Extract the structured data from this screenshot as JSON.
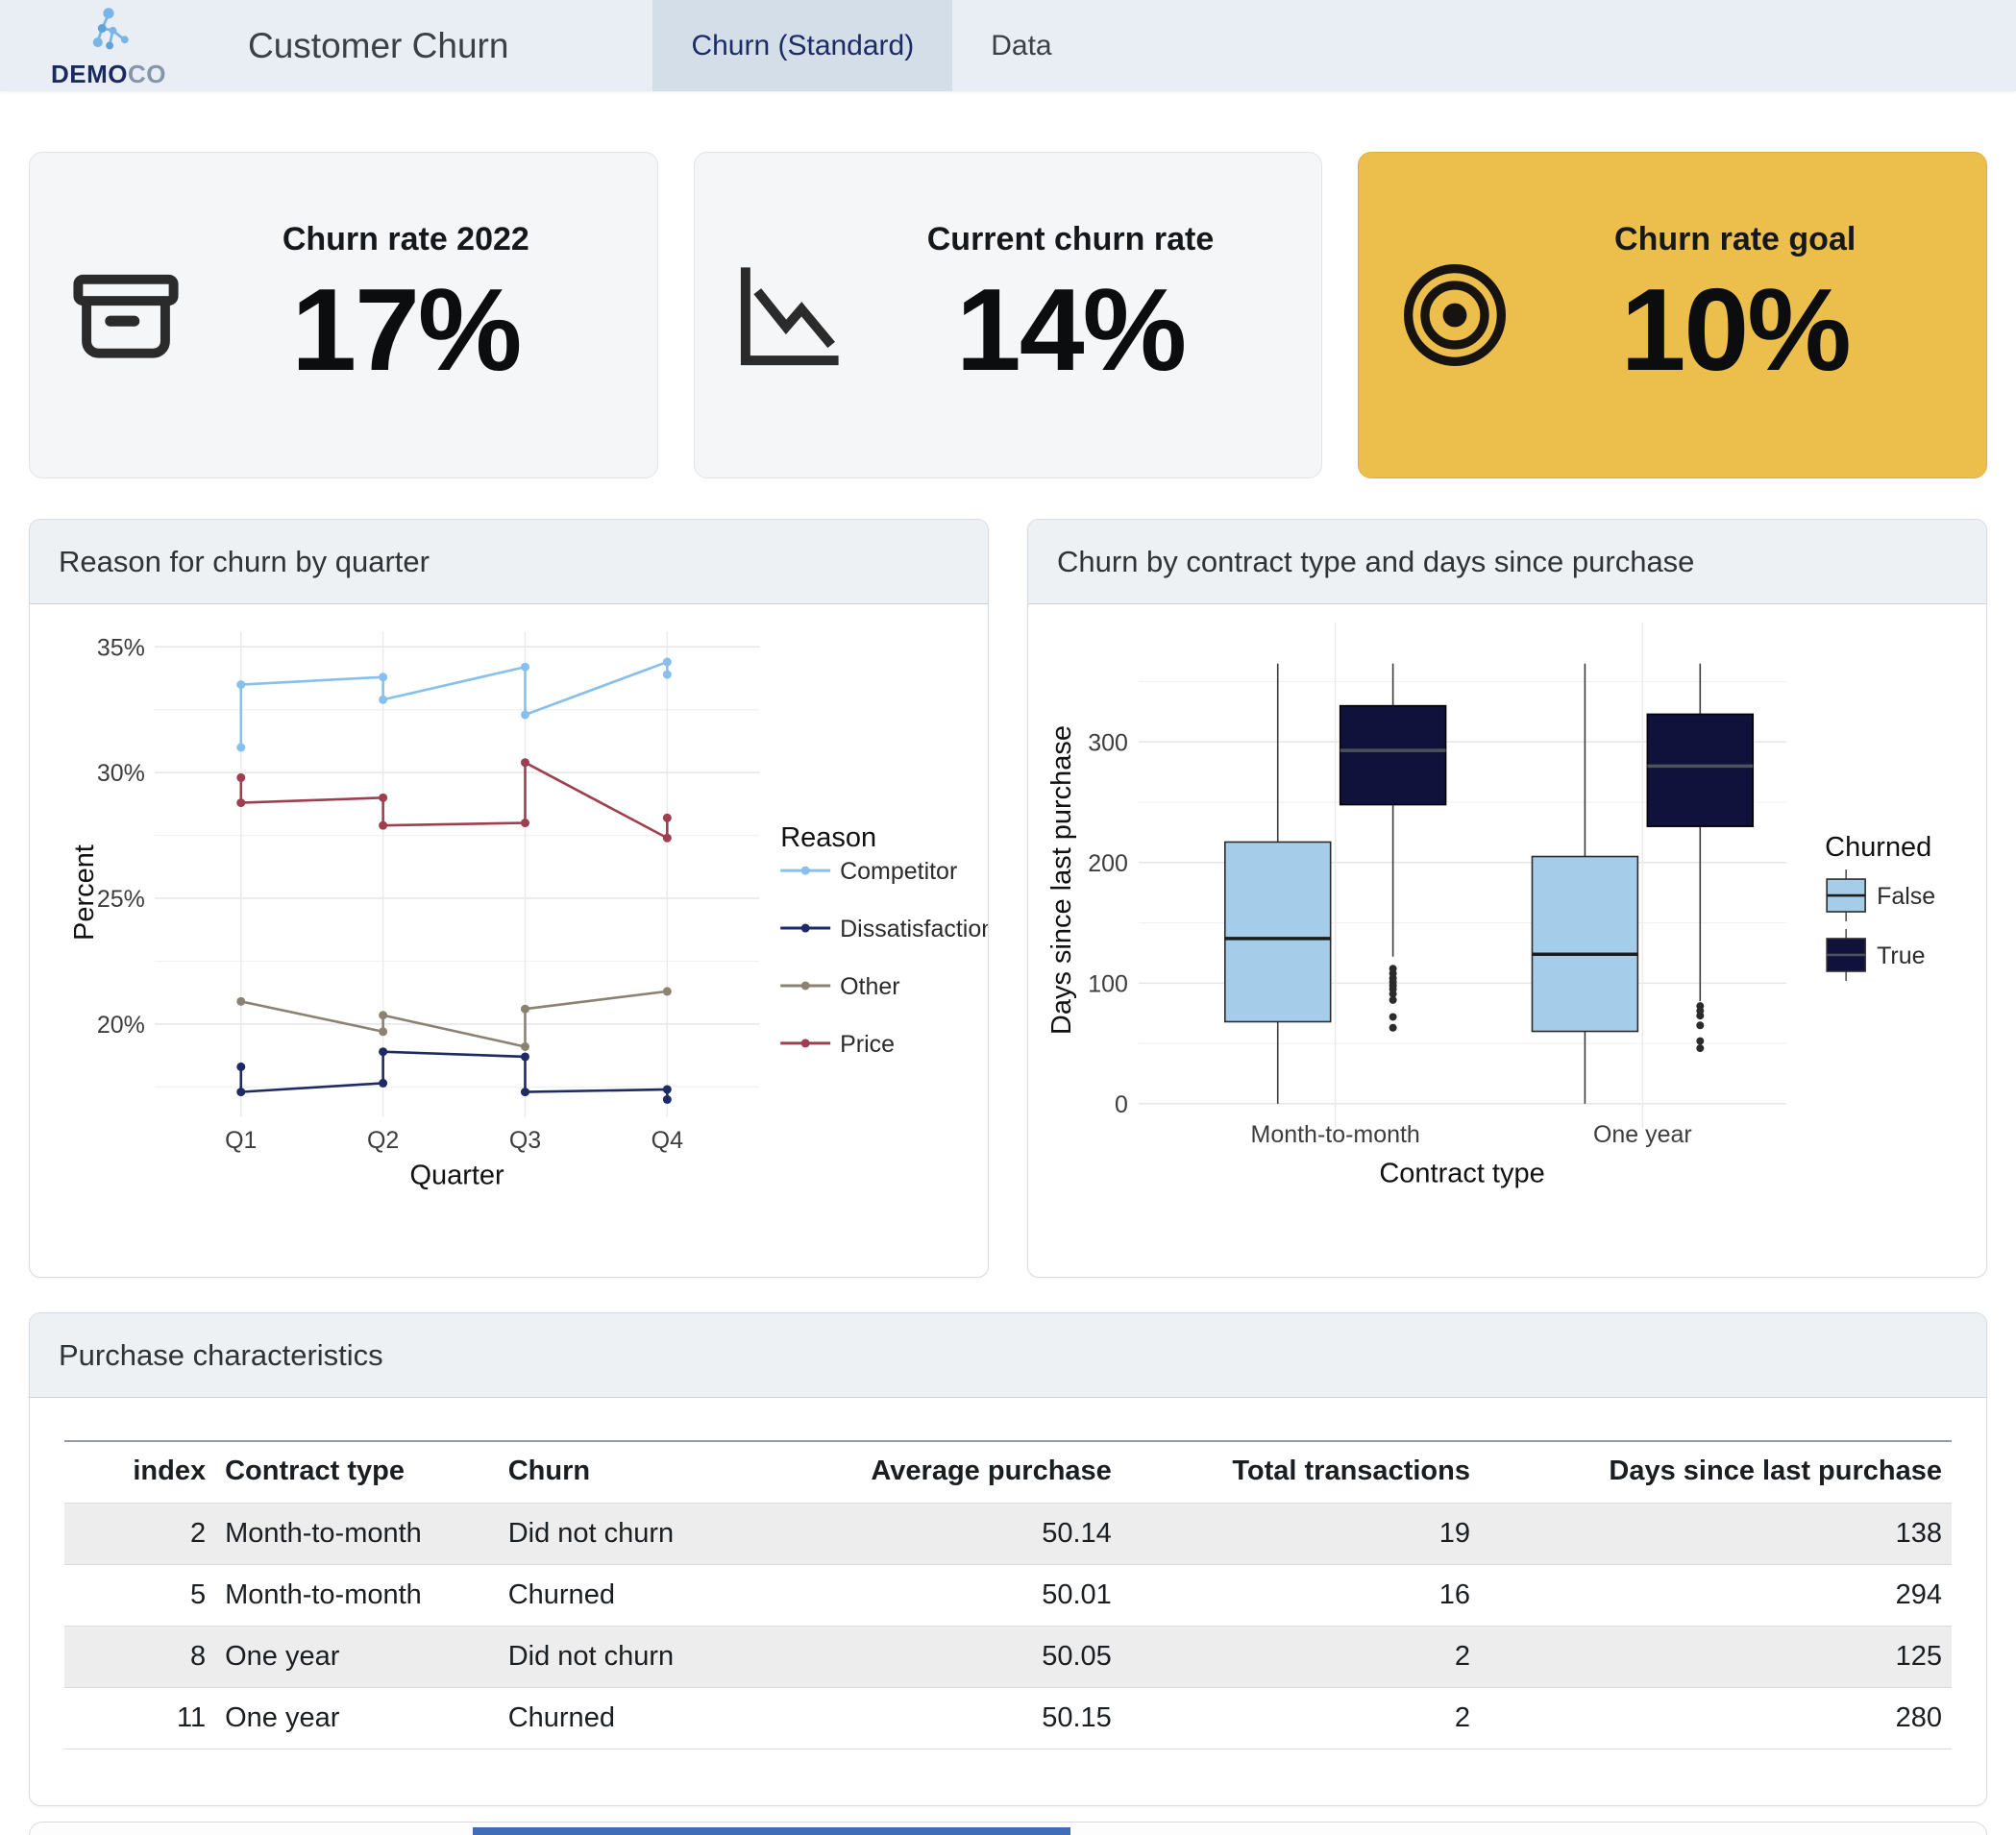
{
  "header": {
    "brand_bold": "DEMO",
    "brand_light": "CO",
    "title": "Customer Churn",
    "tabs": [
      {
        "label": "Churn (Standard)",
        "active": true
      },
      {
        "label": "Data",
        "active": false
      }
    ]
  },
  "kpis": [
    {
      "label": "Churn rate 2022",
      "value": "17%",
      "icon": "archive-box-icon",
      "variant": "default"
    },
    {
      "label": "Current churn rate",
      "value": "14%",
      "icon": "chart-down-icon",
      "variant": "default"
    },
    {
      "label": "Churn rate goal",
      "value": "10%",
      "icon": "target-icon",
      "variant": "highlight",
      "bg": "#ecbe4c"
    }
  ],
  "chart_data": [
    {
      "type": "line",
      "title": "Reason for churn by quarter",
      "xlabel": "Quarter",
      "ylabel": "Percent",
      "x_categories": [
        "Q1",
        "Q2",
        "Q3",
        "Q4"
      ],
      "y_ticks": [
        20,
        25,
        30,
        35
      ],
      "y_minor_ticks": [
        17.5,
        22.5,
        27.5,
        32.5
      ],
      "ylim": [
        16.4,
        36.0
      ],
      "grid": true,
      "legend_title": "Reason",
      "legend_position": "right",
      "series": [
        {
          "name": "Competitor",
          "color": "#87c0ec",
          "points": [
            [
              1,
              31.0
            ],
            [
              1,
              33.5
            ],
            [
              2,
              33.8
            ],
            [
              2,
              32.9
            ],
            [
              3,
              34.2
            ],
            [
              3,
              32.3
            ],
            [
              4,
              34.4
            ],
            [
              4,
              33.9
            ]
          ]
        },
        {
          "name": "Dissatisfaction",
          "color": "#1e2a63",
          "points": [
            [
              1,
              18.3
            ],
            [
              1,
              17.3
            ],
            [
              2,
              17.65
            ],
            [
              2,
              18.9
            ],
            [
              3,
              18.7
            ],
            [
              3,
              17.3
            ],
            [
              4,
              17.4
            ],
            [
              4,
              17.0
            ]
          ]
        },
        {
          "name": "Other",
          "color": "#8b8271",
          "points": [
            [
              1,
              20.9
            ],
            [
              2,
              19.7
            ],
            [
              2,
              20.35
            ],
            [
              3,
              19.1
            ],
            [
              3,
              20.6
            ],
            [
              4,
              21.3
            ]
          ]
        },
        {
          "name": "Price",
          "color": "#9e3f50",
          "points": [
            [
              1,
              29.8
            ],
            [
              1,
              28.8
            ],
            [
              2,
              29.0
            ],
            [
              2,
              27.9
            ],
            [
              3,
              28.0
            ],
            [
              3,
              30.4
            ],
            [
              4,
              27.4
            ],
            [
              4,
              28.2
            ]
          ]
        }
      ]
    },
    {
      "type": "boxplot",
      "title": "Churn by contract type and days since purchase",
      "xlabel": "Contract type",
      "ylabel": "Days since last purchase",
      "categories": [
        "Month-to-month",
        "One year"
      ],
      "y_ticks": [
        0,
        100,
        200,
        300
      ],
      "y_minor_ticks": [
        50,
        150,
        250,
        350
      ],
      "ylim": [
        0,
        390
      ],
      "grid": true,
      "legend_title": "Churned",
      "legend_position": "right",
      "legend": [
        {
          "label": "False",
          "color": "#a5cde9"
        },
        {
          "label": "True",
          "color": "#10123c"
        }
      ],
      "boxes": [
        {
          "category": "Month-to-month",
          "churned": "False",
          "color": "#a5cde9",
          "low": 0,
          "q1": 68,
          "median": 137,
          "q3": 217,
          "high": 365,
          "outliers": []
        },
        {
          "category": "Month-to-month",
          "churned": "True",
          "color": "#10123c",
          "low": 122,
          "q1": 248,
          "median": 293,
          "q3": 330,
          "high": 365,
          "outliers": [
            112,
            108,
            104,
            101,
            98,
            95,
            91,
            86,
            72,
            63
          ]
        },
        {
          "category": "One year",
          "churned": "False",
          "color": "#a5cde9",
          "low": 0,
          "q1": 60,
          "median": 124,
          "q3": 205,
          "high": 365,
          "outliers": []
        },
        {
          "category": "One year",
          "churned": "True",
          "color": "#10123c",
          "low": 85,
          "q1": 230,
          "median": 280,
          "q3": 323,
          "high": 365,
          "outliers": [
            81,
            77,
            73,
            65,
            52,
            46
          ]
        }
      ]
    }
  ],
  "table": {
    "title": "Purchase characteristics",
    "columns": [
      "index",
      "Contract type",
      "Churn",
      "Average purchase",
      "Total transactions",
      "Days since last purchase"
    ],
    "align": [
      "right",
      "left",
      "left",
      "right",
      "right",
      "right"
    ],
    "rows": [
      [
        "2",
        "Month-to-month",
        "Did not churn",
        "50.14",
        "19",
        "138"
      ],
      [
        "5",
        "Month-to-month",
        "Churned",
        "50.01",
        "16",
        "294"
      ],
      [
        "8",
        "One year",
        "Did not churn",
        "50.05",
        "2",
        "125"
      ],
      [
        "11",
        "One year",
        "Churned",
        "50.15",
        "2",
        "280"
      ]
    ]
  },
  "colors": {
    "topbar_bg": "#e9eef4",
    "active_tab_bg": "#d4dee8",
    "kpi_card_bg": "#f4f6f8",
    "kpi_accent_bg": "#ecbe4c",
    "panel_header_bg": "#edf1f4",
    "bottom_bar": "#3f6db8"
  }
}
